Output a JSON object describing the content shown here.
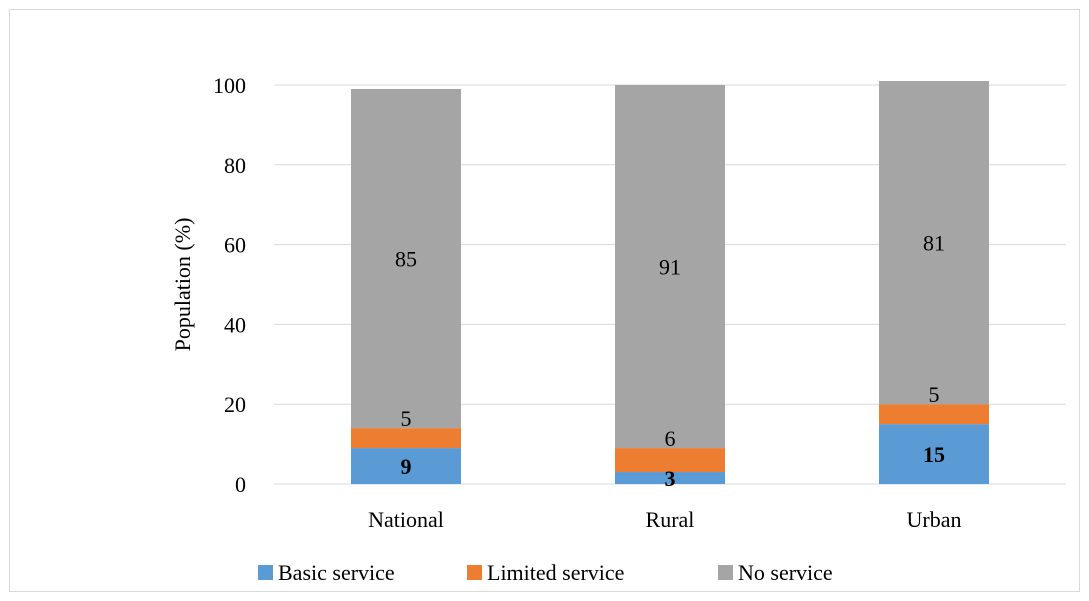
{
  "chart_data": {
    "type": "bar",
    "stacked": true,
    "title": "",
    "xlabel": "",
    "ylabel": "Population (%)",
    "ylim": [
      0,
      100
    ],
    "yticks": [
      0,
      20,
      40,
      60,
      80,
      100
    ],
    "grid": true,
    "legend_position": "bottom",
    "categories": [
      "National",
      "Rural",
      "Urban"
    ],
    "series": [
      {
        "name": "Basic service",
        "color": "#5b9bd5",
        "values": [
          9,
          3,
          15
        ],
        "labels": [
          "9",
          "3",
          "15"
        ],
        "bold_labels": true
      },
      {
        "name": "Limited service",
        "color": "#ed7d31",
        "values": [
          5,
          6,
          5
        ],
        "labels": [
          "5",
          "6",
          "5"
        ],
        "bold_labels": false
      },
      {
        "name": "No service",
        "color": "#a5a5a5",
        "values": [
          85,
          91,
          81
        ],
        "labels": [
          "85",
          "91",
          "81"
        ],
        "bold_labels": false
      }
    ]
  },
  "colors": {
    "grid": "#d9d9d9",
    "axis": "#d9d9d9"
  }
}
